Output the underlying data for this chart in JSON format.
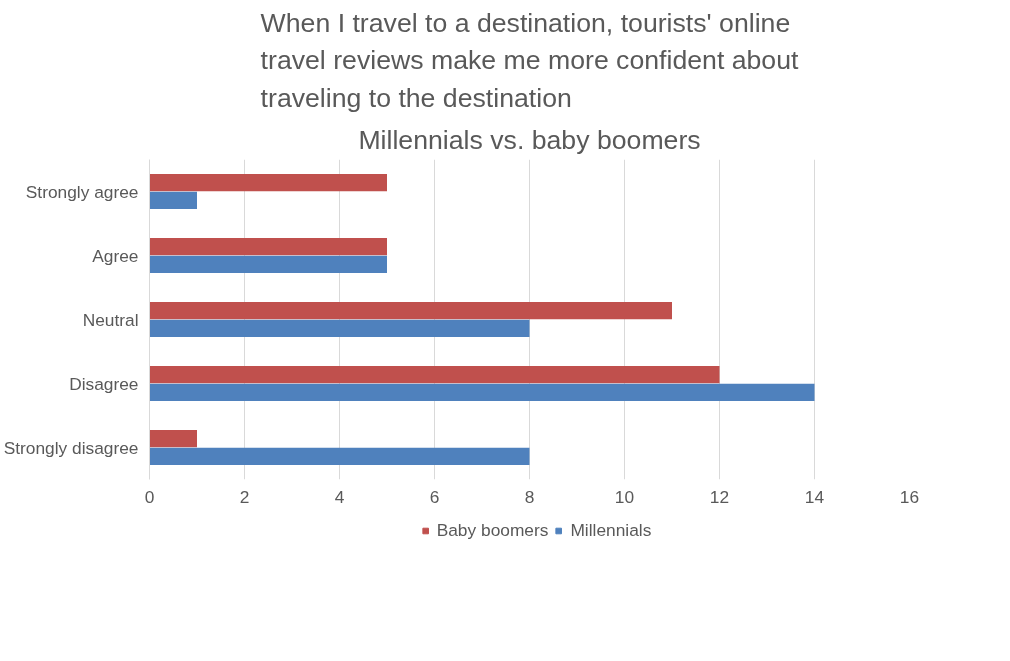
{
  "chart_data": {
    "type": "bar",
    "orientation": "horizontal",
    "title": "When I travel to a destination, tourists' online travel reviews make me more confident about traveling to the destination",
    "subtitle": "Millennials vs. baby boomers",
    "categories": [
      "Strongly agree",
      "Agree",
      "Neutral",
      "Disagree",
      "Strongly disagree"
    ],
    "series": [
      {
        "name": "Baby boomers",
        "color": "#c0504d",
        "values": [
          5,
          5,
          11,
          12,
          1
        ]
      },
      {
        "name": "Millennials",
        "color": "#4f81bd",
        "values": [
          1,
          5,
          8,
          14,
          8
        ]
      }
    ],
    "xlim": [
      0,
      16
    ],
    "xticks": [
      0,
      2,
      4,
      6,
      8,
      10,
      12,
      14,
      16
    ],
    "grid": "x",
    "legend": "bottom"
  }
}
